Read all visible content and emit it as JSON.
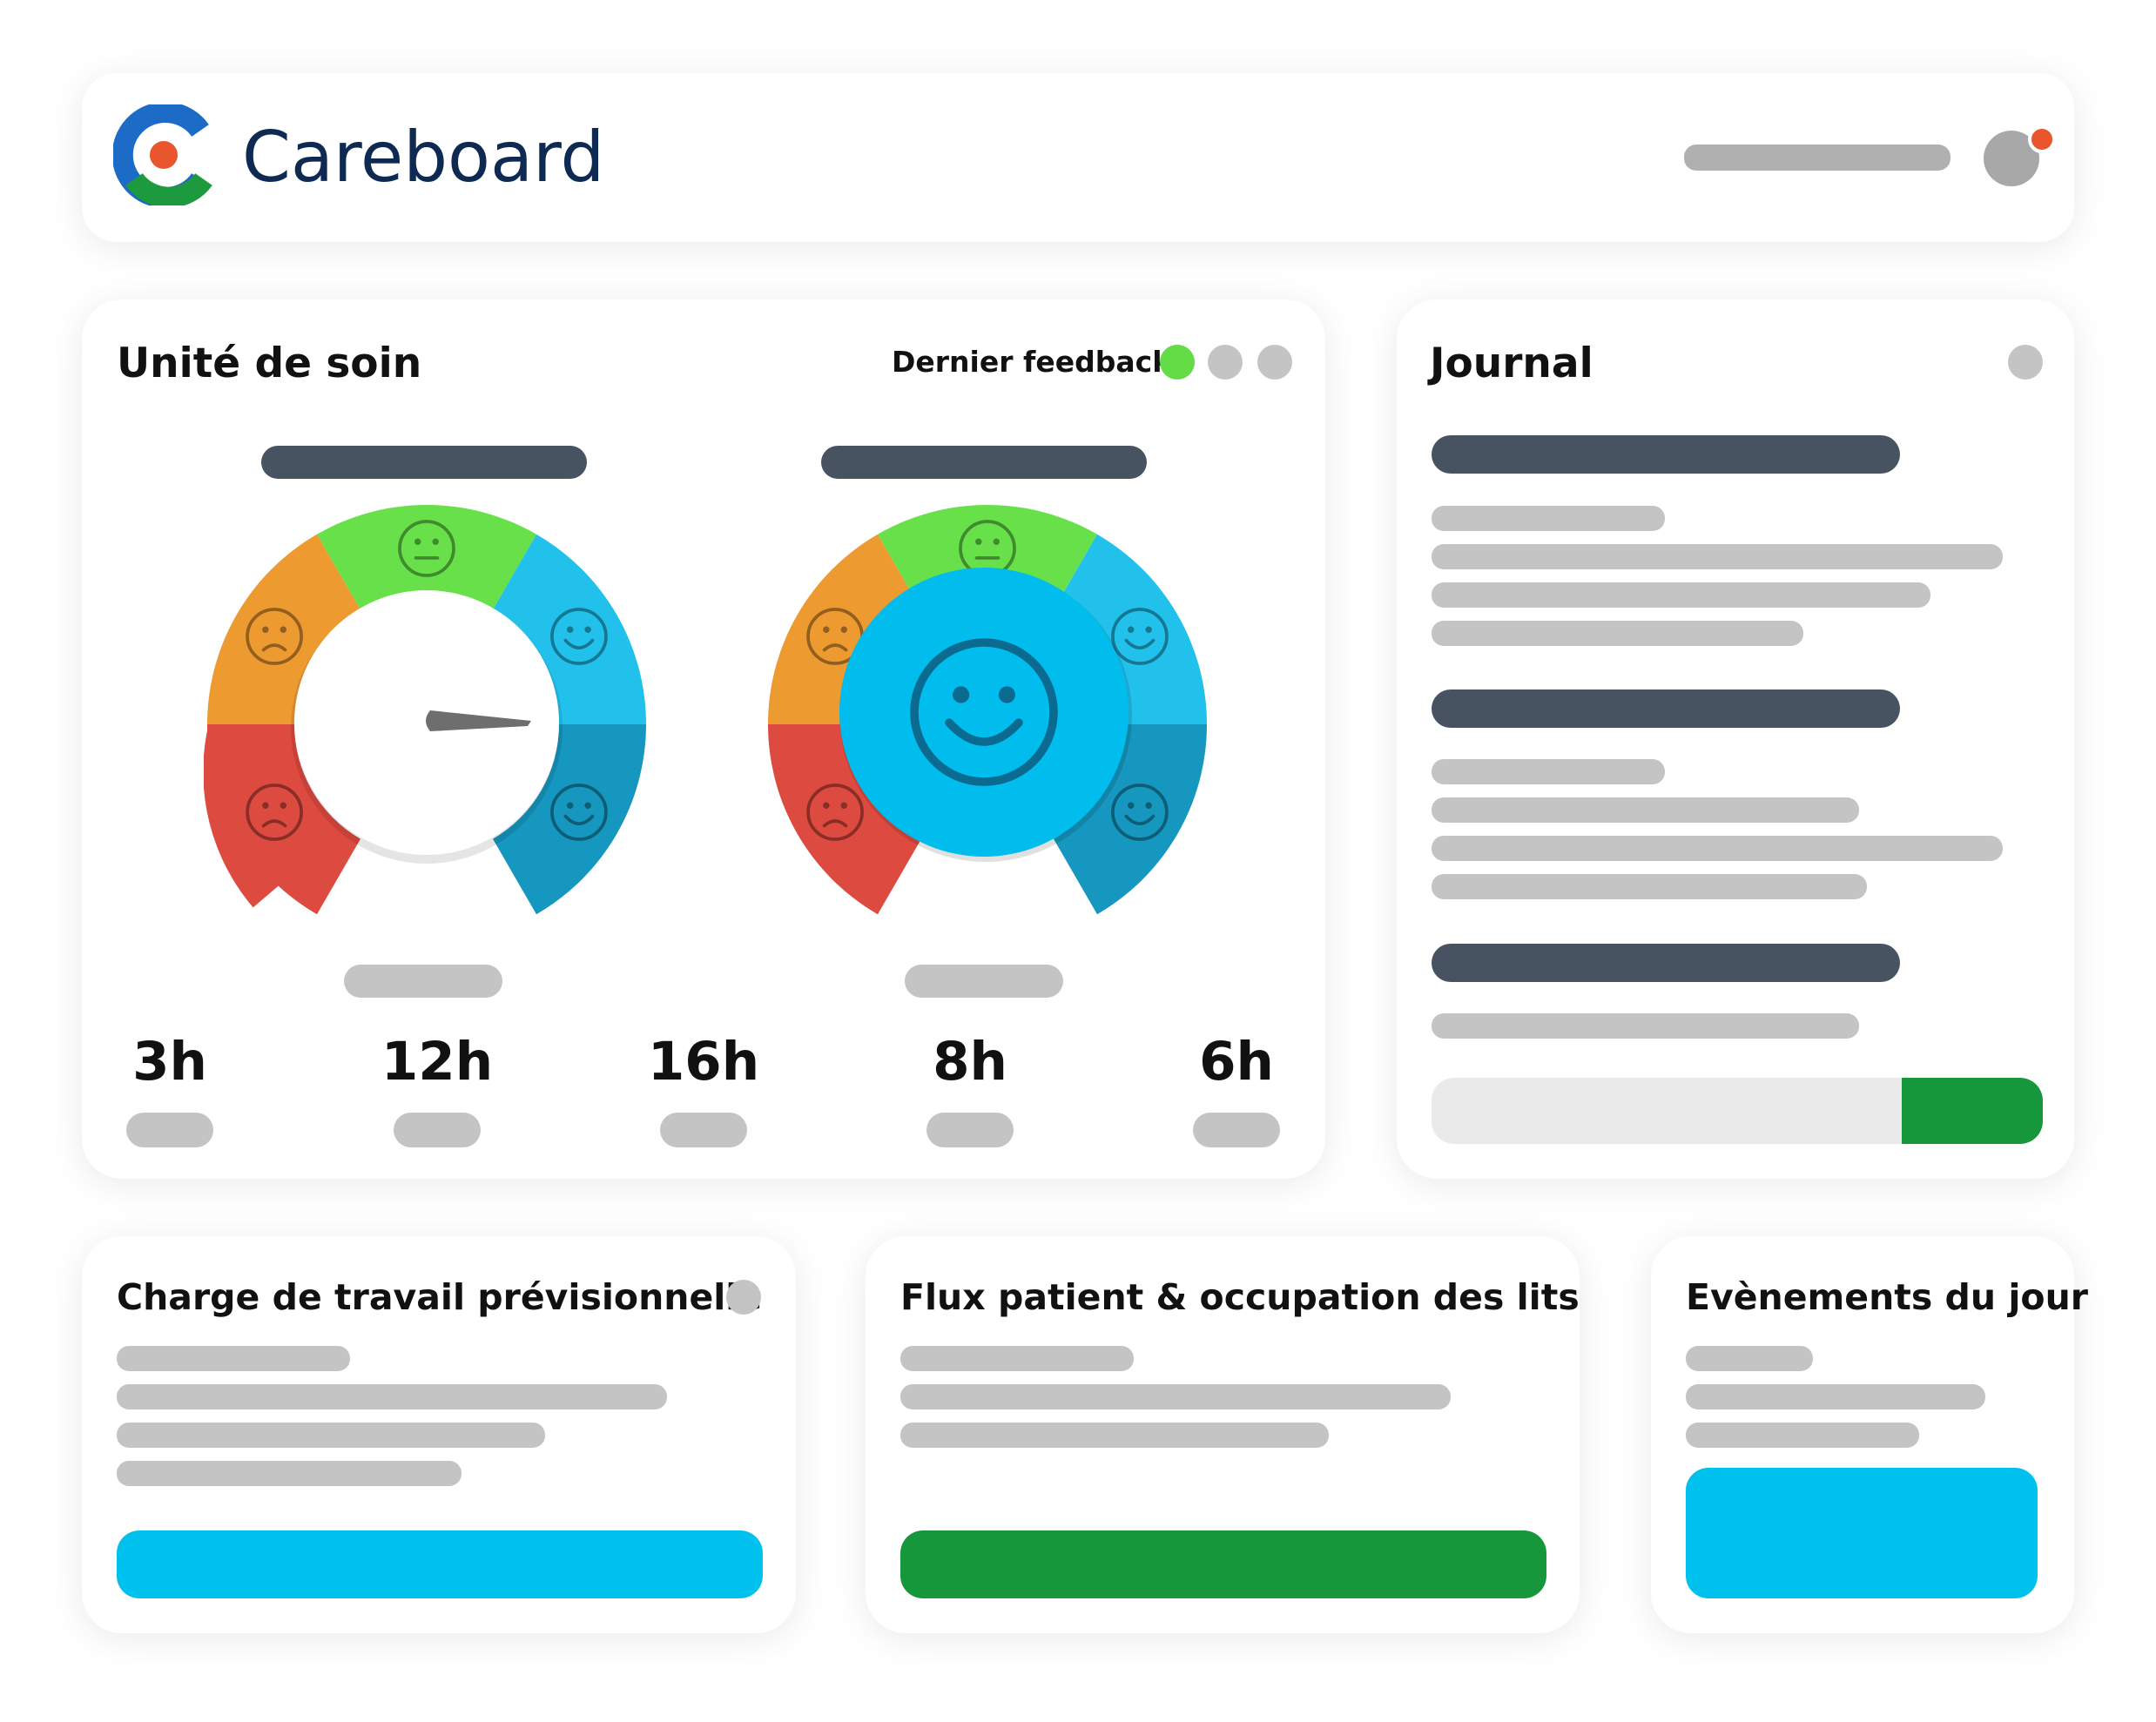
{
  "header": {
    "brand": "Careboard"
  },
  "unit": {
    "title": "Unité de soin",
    "feedback_label": "Dernier feedback",
    "feedback_dots": [
      "#63dc46",
      "#c4c4c4",
      "#c4c4c4"
    ],
    "gauge_colors": [
      "#dd4a3f",
      "#ed9a31",
      "#67e04a",
      "#22c1ec",
      "#1597bf"
    ],
    "hours": [
      "3h",
      "12h",
      "16h",
      "8h",
      "6h"
    ]
  },
  "journal": {
    "title": "Journal",
    "action_color": "#17973b"
  },
  "cards": {
    "workload": {
      "title": "Charge de travail prévisionnelle",
      "button_color": "#00c0ed"
    },
    "patient_flow": {
      "title": "Flux patient & occupation des lits",
      "button_color": "#17973b"
    },
    "events": {
      "title": "Evènements du jour",
      "button_color": "#00c0ed"
    }
  },
  "colors": {
    "brand_blue": "#1c6bc6",
    "brand_green": "#1d9a3e",
    "brand_orange": "#e9552c",
    "text_dark": "#0e2a52"
  }
}
